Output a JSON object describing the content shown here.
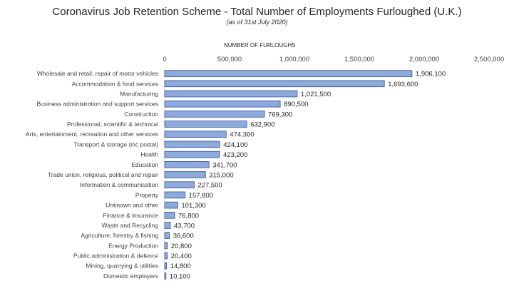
{
  "chart_data": {
    "type": "bar",
    "orientation": "horizontal",
    "title": "Coronavirus Job Retention Scheme - Total Number of Employments Furloughed (U.K.)",
    "subtitle": "(as of 31st July 2020)",
    "xlabel": "NUMBER OF FURLOUGHS",
    "xlim": [
      0,
      2500000
    ],
    "xticks": [
      0,
      500000,
      1000000,
      1500000,
      2000000,
      2500000
    ],
    "xtick_labels": [
      "0",
      "500,000",
      "1,000,000",
      "1,500,000",
      "2,000,000",
      "2,500,000"
    ],
    "x_axis_position": "top",
    "grid": false,
    "categories": [
      "Wholesale and retail; repair of motor vehicles",
      "Accommodation & food services",
      "Manufacturing",
      "Business administration and support services",
      "Construction",
      "Professional, scientific & technical",
      "Arts, entertainment, recreation and other services",
      "Transport & storage (inc postal)",
      "Health",
      "Education",
      "Trade union, religious, political and repair",
      "Information & communication",
      "Property",
      "Unknown and other",
      "Finance & insurance",
      "Waste and Recycling",
      "Agriculture, forestry & fishing",
      "Energy Production",
      "Public administration & defence",
      "Mining, quarrying & utilities",
      "Domestic employers"
    ],
    "values": [
      1906100,
      1693600,
      1021500,
      890500,
      769300,
      632900,
      474300,
      424100,
      423200,
      341700,
      315000,
      227500,
      157800,
      101300,
      76800,
      43700,
      36600,
      20800,
      20400,
      14800,
      10100
    ],
    "value_labels": [
      "1,906,100",
      "1,693,600",
      "1,021,500",
      "890,500",
      "769,300",
      "632,900",
      "474,300",
      "424,100",
      "423,200",
      "341,700",
      "315,000",
      "227,500",
      "157,800",
      "101,300",
      "76,800",
      "43,700",
      "36,600",
      "20,800",
      "20,400",
      "14,800",
      "10,100"
    ],
    "colors": {
      "bar_fill": "#8ea9db",
      "bar_border": "#2f5597"
    }
  }
}
